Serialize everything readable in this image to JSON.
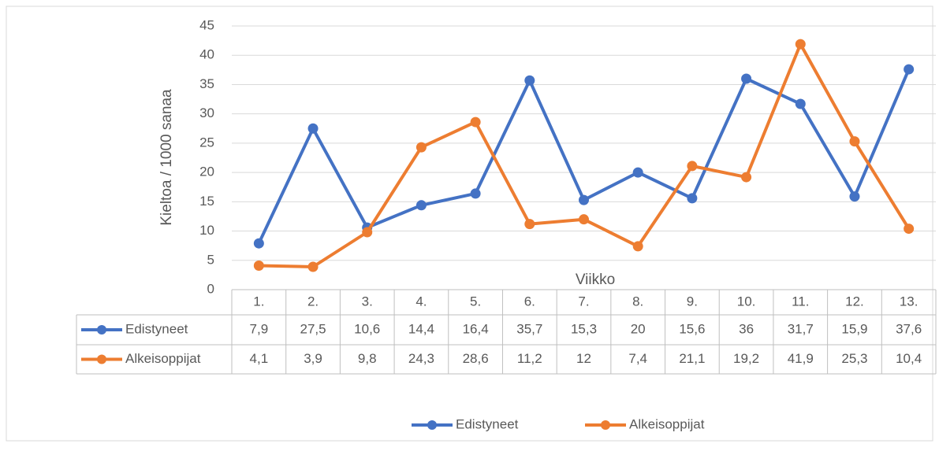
{
  "chart_data": {
    "type": "line",
    "y_label": "Kieltoa / 1000 sanaa",
    "x_label": "Viikko",
    "categories": [
      "1.",
      "2.",
      "3.",
      "4.",
      "5.",
      "6.",
      "7.",
      "8.",
      "9.",
      "10.",
      "11.",
      "12.",
      "13."
    ],
    "series": [
      {
        "name": "Edistyneet",
        "color": "#4472c4",
        "values": [
          7.9,
          27.5,
          10.6,
          14.4,
          16.4,
          35.7,
          15.3,
          20,
          15.6,
          36,
          31.7,
          15.9,
          37.6
        ],
        "value_labels": [
          "7,9",
          "27,5",
          "10,6",
          "14,4",
          "16,4",
          "35,7",
          "15,3",
          "20",
          "15,6",
          "36",
          "31,7",
          "15,9",
          "37,6"
        ]
      },
      {
        "name": "Alkeisoppijat",
        "color": "#ed7d31",
        "values": [
          4.1,
          3.9,
          9.8,
          24.3,
          28.6,
          11.2,
          12,
          7.4,
          21.1,
          19.2,
          41.9,
          25.3,
          10.4
        ],
        "value_labels": [
          "4,1",
          "3,9",
          "9,8",
          "24,3",
          "28,6",
          "11,2",
          "12",
          "7,4",
          "21,1",
          "19,2",
          "41,9",
          "25,3",
          "10,4"
        ]
      }
    ],
    "ylim": [
      0,
      45
    ],
    "yticks": [
      0,
      5,
      10,
      15,
      20,
      25,
      30,
      35,
      40,
      45
    ],
    "grid": true,
    "data_table": true,
    "legend": "bottom"
  }
}
